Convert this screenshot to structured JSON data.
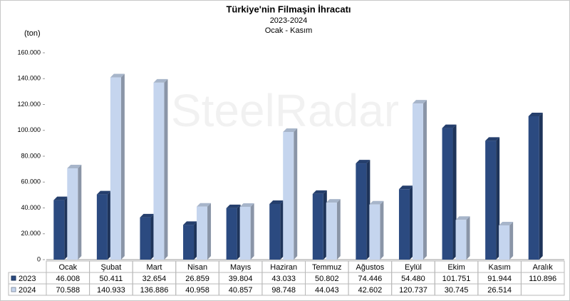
{
  "chart_data": {
    "type": "bar",
    "title": "Türkiye'nin Filmaşin İhracatı",
    "subtitle": "2023-2024",
    "period": "Ocak - Kasım",
    "y_label": "(ton)",
    "watermark": "SteelRadar",
    "categories": [
      "Ocak",
      "Şubat",
      "Mart",
      "Nisan",
      "Mayıs",
      "Haziran",
      "Temmuz",
      "Ağustos",
      "Eylül",
      "Ekim",
      "Kasım",
      "Aralık"
    ],
    "series": [
      {
        "name": "2023",
        "color": "#2b4a80",
        "values": [
          46008,
          50411,
          32654,
          26859,
          39804,
          43033,
          50802,
          74446,
          54480,
          101751,
          91944,
          110896
        ],
        "value_labels": [
          "46.008",
          "50.411",
          "32.654",
          "26.859",
          "39.804",
          "43.033",
          "50.802",
          "74.446",
          "54.480",
          "101.751",
          "91.944",
          "110.896"
        ]
      },
      {
        "name": "2024",
        "color": "#c5d5ee",
        "values": [
          70588,
          140933,
          136886,
          40958,
          40857,
          98748,
          44043,
          42602,
          120737,
          30745,
          26514,
          null
        ],
        "value_labels": [
          "70.588",
          "140.933",
          "136.886",
          "40.958",
          "40.857",
          "98.748",
          "44.043",
          "42.602",
          "120.737",
          "30.745",
          "26.514",
          null
        ]
      }
    ],
    "ylim": [
      0,
      160000
    ],
    "yticks": [
      0,
      {
        "value": 20000,
        "label": "20.000"
      },
      {
        "value": 40000,
        "label": "40.000"
      },
      {
        "value": 60000,
        "label": "60.000"
      },
      {
        "value": 80000,
        "label": "80.000"
      },
      {
        "value": 100000,
        "label": "100.000"
      },
      {
        "value": 120000,
        "label": "120.000"
      },
      {
        "value": 140000,
        "label": "140.000"
      },
      {
        "value": 160000,
        "label": "160.000"
      }
    ],
    "grid": false
  }
}
